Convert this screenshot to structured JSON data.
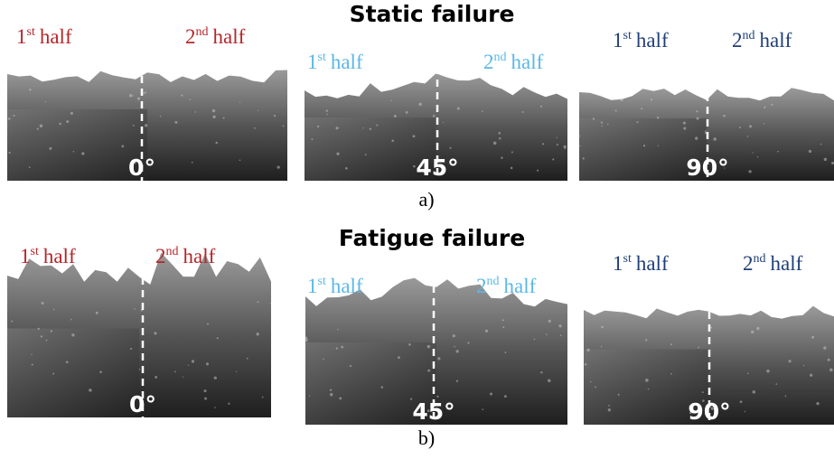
{
  "rows": [
    {
      "title": "Static failure",
      "label": "a)",
      "panels": [
        {
          "angle": "0°",
          "color": "#b5262a",
          "first": {
            "num": "1",
            "sup": "st",
            "word": "half"
          },
          "second": {
            "num": "2",
            "sup": "nd",
            "word": "half"
          }
        },
        {
          "angle": "45°",
          "color": "#5bb8e6",
          "first": {
            "num": "1",
            "sup": "st",
            "word": "half"
          },
          "second": {
            "num": "2",
            "sup": "nd",
            "word": "half"
          }
        },
        {
          "angle": "90°",
          "color": "#1f3f78",
          "first": {
            "num": "1",
            "sup": "st",
            "word": "half"
          },
          "second": {
            "num": "2",
            "sup": "nd",
            "word": "half"
          }
        }
      ]
    },
    {
      "title": "Fatigue failure",
      "label": "b)",
      "panels": [
        {
          "angle": "0°",
          "color": "#b5262a",
          "first": {
            "num": "1",
            "sup": "st",
            "word": "half"
          },
          "second": {
            "num": "2",
            "sup": "nd",
            "word": "half"
          }
        },
        {
          "angle": "45°",
          "color": "#5bb8e6",
          "first": {
            "num": "1",
            "sup": "st",
            "word": "half"
          },
          "second": {
            "num": "2",
            "sup": "nd",
            "word": "half"
          }
        },
        {
          "angle": "90°",
          "color": "#1f3f78",
          "first": {
            "num": "1",
            "sup": "st",
            "word": "half"
          },
          "second": {
            "num": "2",
            "sup": "nd",
            "word": "half"
          }
        }
      ]
    }
  ]
}
